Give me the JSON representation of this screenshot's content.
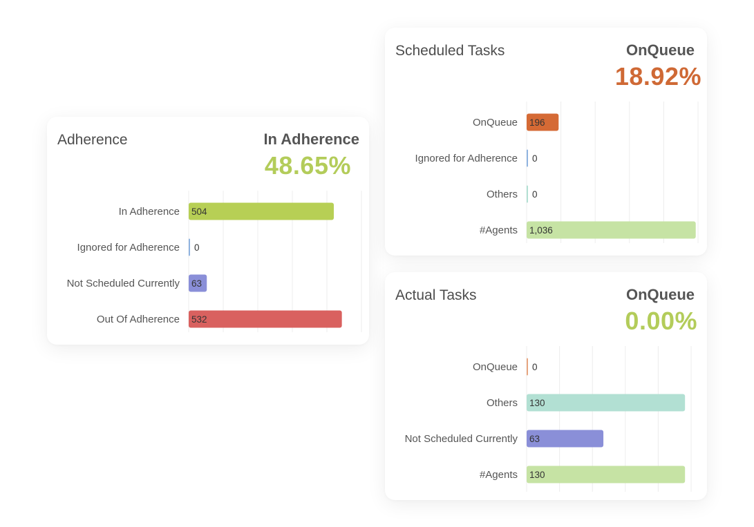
{
  "colors": {
    "green": "#b7cf55",
    "light_green": "#c6e3a4",
    "blue": "#8fb3e0",
    "purple": "#8a8fd8",
    "red": "#d9615f",
    "orange": "#d56a35",
    "teal": "#b2e0d3",
    "peach": "#e7a57f",
    "kpi_green": "#b3cc5a",
    "kpi_orange": "#cf6935"
  },
  "chart_data": [
    {
      "id": "adherence",
      "type": "bar",
      "orientation": "horizontal",
      "title": "Adherence",
      "kpi_label": "In Adherence",
      "kpi_value": "48.65%",
      "kpi_color": "#b3cc5a",
      "categories": [
        "In Adherence",
        "Ignored for Adherence",
        "Not Scheduled Currently",
        "Out Of Adherence"
      ],
      "values": [
        504,
        0,
        63,
        532
      ],
      "value_labels": [
        "504",
        "0",
        "63",
        "532"
      ],
      "bar_colors": [
        "#b7cf55",
        "#8fb3e0",
        "#8a8fd8",
        "#d9615f"
      ],
      "xlim": [
        0,
        600
      ],
      "grid": true
    },
    {
      "id": "scheduled",
      "type": "bar",
      "orientation": "horizontal",
      "title": "Scheduled Tasks",
      "kpi_label": "OnQueue",
      "kpi_value": "18.92%",
      "kpi_color": "#cf6935",
      "categories": [
        "OnQueue",
        "Ignored for Adherence",
        "Others",
        "#Agents"
      ],
      "values": [
        196,
        0,
        0,
        1036
      ],
      "value_labels": [
        "196",
        "0",
        "0",
        "1,036"
      ],
      "bar_colors": [
        "#d56a35",
        "#8fb3e0",
        "#b2e0d3",
        "#c6e3a4"
      ],
      "xlim": [
        0,
        1050
      ],
      "grid": true
    },
    {
      "id": "actual",
      "type": "bar",
      "orientation": "horizontal",
      "title": "Actual Tasks",
      "kpi_label": "OnQueue",
      "kpi_value": "0.00%",
      "kpi_color": "#b3cc5a",
      "categories": [
        "OnQueue",
        "Others",
        "Not Scheduled Currently",
        "#Agents"
      ],
      "values": [
        0,
        130,
        63,
        130
      ],
      "value_labels": [
        "0",
        "130",
        "63",
        "130"
      ],
      "bar_colors": [
        "#e7a57f",
        "#b2e0d3",
        "#8a8fd8",
        "#c6e3a4"
      ],
      "xlim": [
        0,
        135
      ],
      "grid": true
    }
  ]
}
